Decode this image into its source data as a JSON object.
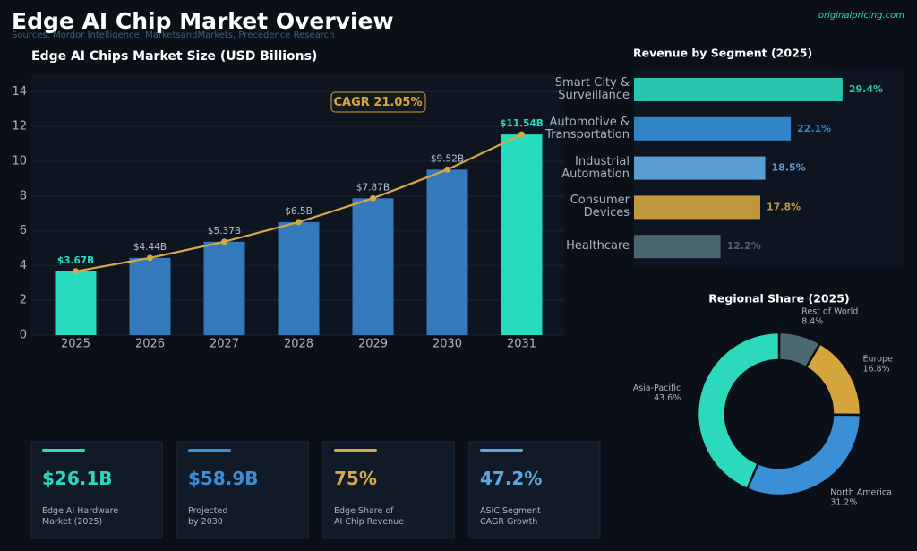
{
  "header": {
    "title": "Edge AI Chip Market Overview",
    "subtitle": "Sources: Mordor Intelligence, MarketsandMarkets, Precedence Research",
    "brand": "originalpricing.com"
  },
  "chart_data": [
    {
      "type": "bar",
      "title": "Edge AI Chips Market Size (USD Billions)",
      "categories": [
        "2025",
        "2026",
        "2027",
        "2028",
        "2029",
        "2030",
        "2031"
      ],
      "values": [
        3.67,
        4.44,
        5.37,
        6.5,
        7.87,
        9.52,
        11.54
      ],
      "value_labels": [
        "$3.67B",
        "$4.44B",
        "$5.37B",
        "$6.5B",
        "$7.87B",
        "$9.52B",
        "$11.54B"
      ],
      "colors": [
        "#27dbbf",
        "#3479bb",
        "#3479bb",
        "#3479bb",
        "#3479bb",
        "#3479bb",
        "#27dbbf"
      ],
      "line_overlay": true,
      "line_color": "#d4a847",
      "annotation": "CAGR 21.05%",
      "ylim": [
        0,
        15
      ],
      "yticks": [
        0,
        2,
        4,
        6,
        8,
        10,
        12,
        14
      ],
      "grid": true
    },
    {
      "type": "hbar",
      "title": "Revenue by Segment (2025)",
      "categories": [
        "Smart City &\nSurveillance",
        "Automotive &\nTransportation",
        "Industrial\nAutomation",
        "Consumer\nDevices",
        "Healthcare"
      ],
      "values": [
        29.4,
        22.1,
        18.5,
        17.8,
        12.2
      ],
      "value_labels": [
        "29.4%",
        "22.1%",
        "18.5%",
        "17.8%",
        "12.2%"
      ],
      "colors": [
        "#26c6b0",
        "#3184c8",
        "#5a9dd2",
        "#c2973c",
        "#4a6470"
      ]
    },
    {
      "type": "donut",
      "title": "Regional Share (2025)",
      "categories": [
        "Rest of World",
        "Europe",
        "North America",
        "Asia-Pacific"
      ],
      "values": [
        8.4,
        16.8,
        31.2,
        43.6
      ],
      "value_labels": [
        "8.4%",
        "16.8%",
        "31.2%",
        "43.6%"
      ],
      "colors": [
        "#4a6a70",
        "#d4a53c",
        "#3a8fd6",
        "#2dd9bd"
      ]
    }
  ],
  "cards": [
    {
      "value": "$26.1B",
      "label": "Edge AI Hardware\nMarket (2025)",
      "color": "#2dd9bd"
    },
    {
      "value": "$58.9B",
      "label": "Projected\nby 2030",
      "color": "#3a8fd6"
    },
    {
      "value": "75%",
      "label": "Edge Share of\nAI Chip Revenue",
      "color": "#d4a847"
    },
    {
      "value": "47.2%",
      "label": "ASIC Segment\nCAGR Growth",
      "color": "#5aa8e0"
    }
  ]
}
